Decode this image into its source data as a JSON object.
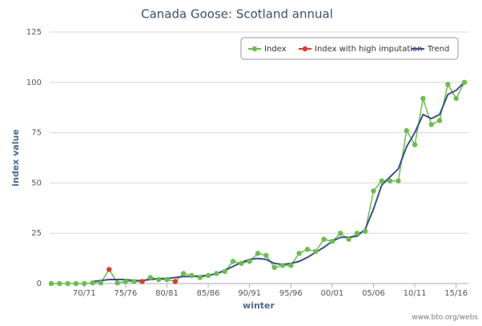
{
  "chart_data": {
    "type": "line",
    "title": "Canada Goose: Scotland annual",
    "x_label": "winter",
    "y_label": "index value",
    "source": "www.bto.org/webs",
    "categories": [
      null,
      null,
      null,
      null,
      "70/71",
      null,
      null,
      null,
      null,
      "75/76",
      null,
      null,
      null,
      null,
      "80/81",
      null,
      null,
      null,
      null,
      "85/86",
      null,
      null,
      null,
      null,
      "90/91",
      null,
      null,
      null,
      null,
      "95/96",
      null,
      null,
      null,
      null,
      "00/01",
      null,
      null,
      null,
      null,
      "05/06",
      null,
      null,
      null,
      null,
      "10/11",
      null,
      null,
      null,
      null,
      "15/16",
      null
    ],
    "series": [
      {
        "name": "Index",
        "color": "#6abf4b",
        "marker": true,
        "values": [
          0,
          0,
          0,
          0,
          0,
          0.3,
          0.3,
          7,
          0.3,
          1,
          1,
          1,
          3,
          2,
          2,
          1,
          5,
          4,
          3,
          4,
          5,
          6,
          11,
          10,
          11,
          15,
          14,
          8,
          9,
          9,
          15,
          17,
          16,
          22,
          21,
          25,
          22,
          25,
          26,
          46,
          51,
          51,
          51,
          76,
          69,
          92,
          79,
          81,
          99,
          92,
          100
        ]
      },
      {
        "name": "Index with high imputation",
        "color": "#e03a2b",
        "marker": true,
        "line": false,
        "values": [
          null,
          null,
          null,
          null,
          null,
          null,
          null,
          7,
          null,
          null,
          null,
          1,
          null,
          null,
          null,
          1,
          null,
          null,
          null,
          null,
          null,
          null,
          null,
          null,
          null,
          null,
          null,
          null,
          null,
          null,
          null,
          null,
          null,
          null,
          null,
          null,
          null,
          null,
          null,
          null,
          null,
          null,
          null,
          null,
          null,
          null,
          null,
          null,
          null,
          null,
          null
        ]
      },
      {
        "name": "Trend",
        "color": "#3b4f8c",
        "marker": false,
        "values": [
          null,
          null,
          null,
          null,
          null,
          1,
          1.5,
          2,
          2,
          2,
          1.5,
          1.5,
          2,
          2.5,
          2.5,
          3,
          3.5,
          3.5,
          3.8,
          4,
          5,
          6.5,
          8.5,
          10.5,
          12,
          12.5,
          12,
          10,
          9.5,
          10,
          11,
          13,
          15.5,
          18,
          21,
          23,
          23,
          23.5,
          27,
          37,
          49,
          53,
          57,
          68,
          75,
          84,
          82,
          84,
          94,
          96,
          100
        ]
      }
    ],
    "ylim": [
      0,
      125
    ],
    "yticks": [
      0,
      25,
      50,
      75,
      100,
      125
    ],
    "grid": true,
    "legend": "top-right"
  }
}
